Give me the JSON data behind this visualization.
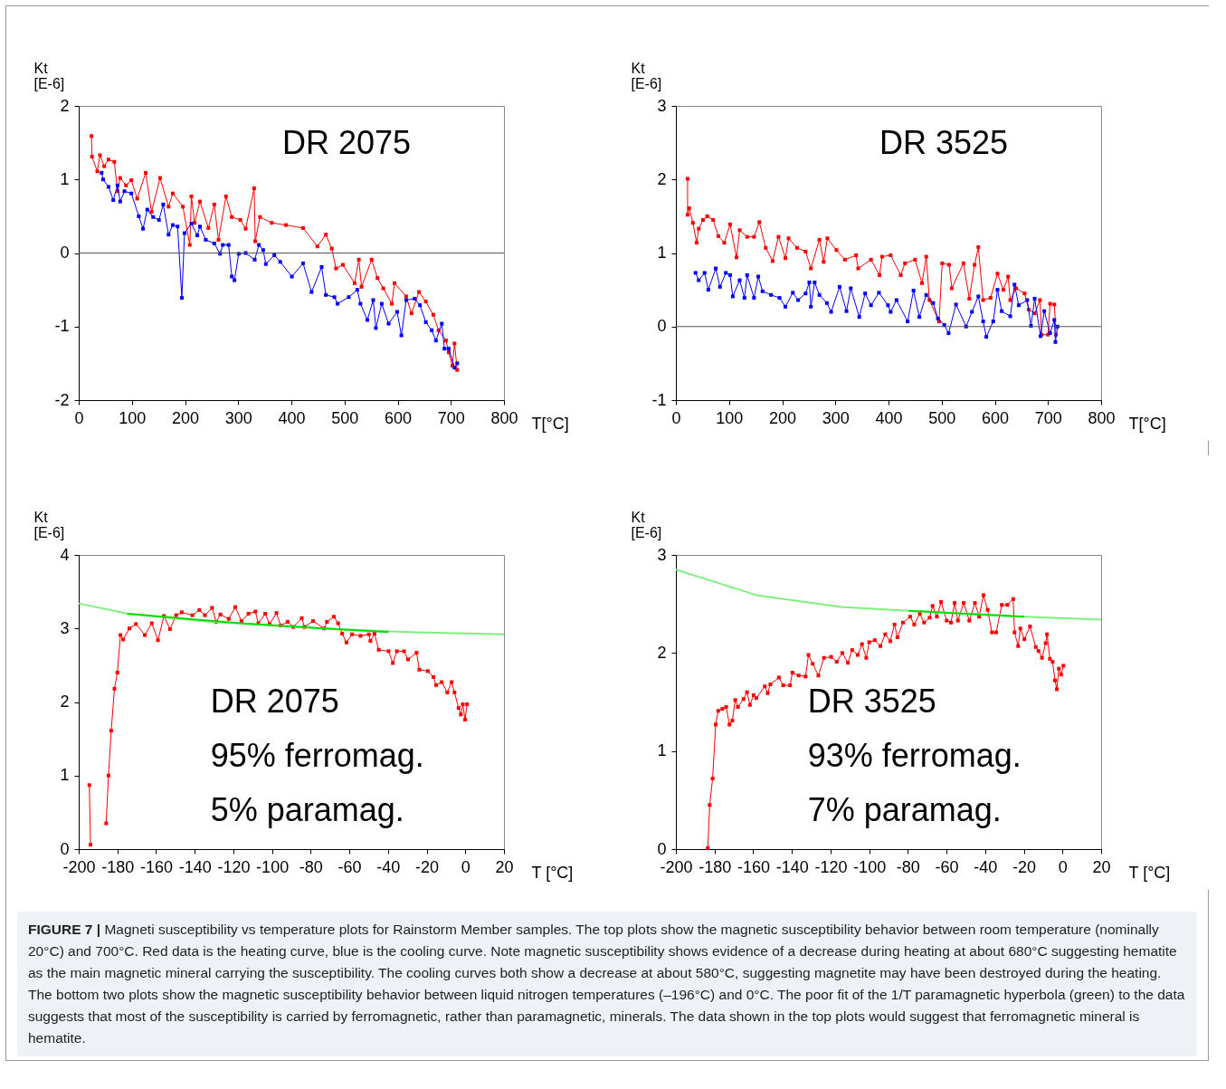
{
  "chart_data": [
    {
      "type": "line",
      "xlabel": "T[°C]",
      "ylabel": "Kt\n[E-6]",
      "annotations": [
        "DR 2075"
      ],
      "xlim": [
        0,
        800
      ],
      "xticks": [
        0,
        100,
        200,
        300,
        400,
        500,
        600,
        700,
        800
      ],
      "ylim": [
        -2,
        2
      ],
      "yticks": [
        -2,
        -1,
        0,
        1,
        2
      ],
      "marker": "square",
      "ref_lines": [
        {
          "axis": "y",
          "value": 0,
          "color": "#555555"
        }
      ],
      "series": [
        {
          "color": "#ff0000",
          "x": [
            24,
            25,
            35,
            40,
            48,
            56,
            67,
            73,
            78,
            89,
            99,
            110,
            126,
            137,
            153,
            169,
            177,
            196,
            209,
            212,
            218,
            228,
            244,
            255,
            263,
            277,
            288,
            304,
            314,
            330,
            332,
            341,
            363,
            390,
            422,
            449,
            465,
            476,
            484,
            497,
            519,
            527,
            532,
            551,
            562,
            573,
            589,
            594,
            616,
            626,
            640,
            653,
            667,
            677,
            691,
            696,
            703,
            707,
            712
          ],
          "values": [
            1.59,
            1.31,
            1.11,
            1.33,
            1.18,
            1.27,
            1.24,
            0.84,
            1.02,
            0.92,
            0.99,
            0.74,
            1.09,
            0.56,
            1.02,
            0.63,
            0.81,
            0.63,
            0.11,
            0.77,
            0.41,
            0.7,
            0.34,
            0.66,
            0.18,
            0.77,
            0.49,
            0.45,
            0.33,
            0.88,
            0.16,
            0.49,
            0.41,
            0.38,
            0.34,
            0.09,
            0.25,
            0.06,
            -0.21,
            -0.16,
            -0.41,
            -0.09,
            -0.46,
            -0.09,
            -0.34,
            -0.48,
            -0.69,
            -0.41,
            -0.59,
            -0.82,
            -0.53,
            -0.66,
            -0.84,
            -1.05,
            -1.19,
            -1.35,
            -1.53,
            -1.23,
            -1.59
          ]
        },
        {
          "color": "#0000ff",
          "x": [
            43,
            46,
            56,
            65,
            73,
            78,
            86,
            99,
            113,
            121,
            129,
            140,
            151,
            159,
            169,
            177,
            186,
            194,
            199,
            212,
            223,
            228,
            239,
            255,
            266,
            271,
            282,
            288,
            293,
            301,
            314,
            331,
            339,
            347,
            352,
            368,
            379,
            401,
            422,
            438,
            457,
            465,
            481,
            487,
            508,
            524,
            530,
            543,
            554,
            559,
            570,
            583,
            599,
            607,
            616,
            632,
            642,
            653,
            664,
            672,
            683,
            688,
            696,
            707,
            712
          ],
          "values": [
            1.09,
            1.0,
            0.9,
            0.72,
            0.92,
            0.7,
            0.84,
            0.81,
            0.5,
            0.33,
            0.59,
            0.49,
            0.45,
            0.66,
            0.25,
            0.38,
            0.36,
            -0.61,
            0.27,
            0.4,
            0.24,
            0.36,
            0.18,
            0.13,
            -0.01,
            0.11,
            0.11,
            -0.32,
            -0.37,
            -0.01,
            0.0,
            -0.09,
            0.11,
            0.04,
            -0.15,
            -0.03,
            -0.12,
            -0.32,
            -0.14,
            -0.53,
            -0.19,
            -0.57,
            -0.6,
            -0.69,
            -0.6,
            -0.5,
            -0.69,
            -0.91,
            -0.64,
            -1.02,
            -0.69,
            -0.96,
            -0.8,
            -1.12,
            -0.64,
            -0.62,
            -0.71,
            -0.94,
            -1.05,
            -1.19,
            -0.96,
            -1.3,
            -1.3,
            -1.56,
            -1.5
          ]
        }
      ]
    },
    {
      "type": "line",
      "xlabel": "T[°C]",
      "ylabel": "Kt\n[E-6]",
      "annotations": [
        "DR 3525"
      ],
      "xlim": [
        0,
        800
      ],
      "xticks": [
        0,
        100,
        200,
        300,
        400,
        500,
        600,
        700,
        800
      ],
      "ylim": [
        -1,
        3
      ],
      "yticks": [
        -1,
        0,
        1,
        2,
        3
      ],
      "marker": "square",
      "ref_lines": [
        {
          "axis": "y",
          "value": 0,
          "color": "#555555"
        }
      ],
      "series": [
        {
          "color": "#ff0000",
          "x": [
            22,
            22,
            25,
            32,
            39,
            43,
            51,
            59,
            70,
            80,
            91,
            102,
            114,
            120,
            134,
            147,
            157,
            169,
            182,
            193,
            206,
            212,
            228,
            244,
            254,
            270,
            278,
            285,
            302,
            318,
            339,
            343,
            367,
            383,
            388,
            404,
            423,
            431,
            450,
            463,
            471,
            477,
            495,
            501,
            514,
            519,
            541,
            552,
            562,
            569,
            578,
            592,
            605,
            616,
            625,
            629,
            640,
            656,
            664,
            675,
            685,
            688,
            700,
            704,
            712,
            715
          ],
          "values": [
            2.01,
            1.52,
            1.61,
            1.41,
            1.14,
            1.33,
            1.45,
            1.5,
            1.45,
            1.23,
            1.14,
            1.39,
            0.94,
            1.31,
            1.22,
            1.22,
            1.42,
            1.07,
            0.89,
            1.22,
            0.93,
            1.2,
            1.07,
            1.02,
            0.79,
            1.18,
            0.88,
            1.2,
            1.04,
            0.91,
            0.97,
            0.79,
            0.91,
            0.7,
            0.95,
            0.97,
            0.7,
            0.86,
            0.91,
            0.59,
            0.95,
            0.36,
            0.07,
            0.86,
            0.84,
            0.52,
            0.86,
            0.38,
            0.84,
            1.08,
            0.36,
            0.39,
            0.72,
            0.5,
            0.68,
            0.36,
            0.52,
            0.45,
            0.23,
            0.18,
            0.36,
            -0.11,
            -0.11,
            0.31,
            0.3,
            -0.11
          ]
        },
        {
          "color": "#0000ff",
          "x": [
            37,
            43,
            54,
            61,
            75,
            83,
            94,
            102,
            107,
            120,
            129,
            134,
            147,
            155,
            163,
            179,
            195,
            206,
            220,
            230,
            244,
            251,
            254,
            261,
            270,
            284,
            292,
            308,
            321,
            329,
            345,
            356,
            367,
            382,
            399,
            404,
            415,
            436,
            447,
            458,
            471,
            484,
            493,
            505,
            513,
            527,
            546,
            557,
            569,
            578,
            584,
            597,
            605,
            613,
            629,
            637,
            645,
            661,
            668,
            675,
            686,
            693,
            704,
            712,
            714,
            718
          ],
          "values": [
            0.73,
            0.63,
            0.73,
            0.5,
            0.79,
            0.54,
            0.73,
            0.7,
            0.41,
            0.63,
            0.39,
            0.7,
            0.39,
            0.68,
            0.48,
            0.43,
            0.39,
            0.27,
            0.46,
            0.36,
            0.45,
            0.6,
            0.27,
            0.6,
            0.43,
            0.32,
            0.2,
            0.54,
            0.21,
            0.52,
            0.13,
            0.45,
            0.29,
            0.46,
            0.29,
            0.2,
            0.36,
            0.07,
            0.49,
            0.13,
            0.43,
            0.32,
            0.11,
            0.02,
            -0.09,
            0.3,
            0.0,
            0.2,
            0.41,
            0.07,
            -0.14,
            0.07,
            0.5,
            0.21,
            0.14,
            0.57,
            0.29,
            0.36,
            0.01,
            0.38,
            -0.13,
            0.21,
            -0.09,
            0.09,
            -0.21,
            0.0
          ]
        }
      ]
    },
    {
      "type": "line",
      "xlabel": "T [°C]",
      "ylabel": "Kt\n[E-6]",
      "annotations": [
        "DR 2075",
        "95% ferromag.",
        "5% paramag."
      ],
      "xlim": [
        -200,
        20
      ],
      "xticks": [
        -200,
        -180,
        -160,
        -140,
        -120,
        -100,
        -80,
        -60,
        -40,
        -20,
        0,
        20
      ],
      "ylim": [
        0,
        4
      ],
      "yticks": [
        0,
        1,
        2,
        3,
        4
      ],
      "marker": "square",
      "series": [
        {
          "color": "#ff0000",
          "x": [
            -194.5,
            -193.9,
            -190,
            -185.8,
            -184.6,
            -183.2,
            -181.5,
            -180.0,
            -178.4,
            -177.0,
            -173.8,
            -170.4,
            -165.8,
            -162.2,
            -159.0,
            -155.9,
            -152.8,
            -149.6,
            -146.7,
            -141.2,
            -137.6,
            -134.7,
            -131.0,
            -128.9,
            -126.7,
            -122.4,
            -119.0,
            -115.8,
            -112.2,
            -108.6,
            -107.1,
            -103.5,
            -101.3,
            -97.7,
            -95.5,
            -91.9,
            -89.0,
            -84.6,
            -83.2,
            -78.8,
            -73.0,
            -71.6,
            -68.0,
            -65.8,
            -63.7,
            -61.5,
            -58.6,
            -54.2,
            -49.9,
            -49.1,
            -47.0,
            -44.8,
            -39.7,
            -37.5,
            -35.4,
            -31.7,
            -29.6,
            -25.2,
            -23.8,
            -19.4,
            -16.5,
            -15.1,
            -12.2,
            -9.3,
            -7.1,
            -5.6,
            -3.5,
            -2.3,
            -1.3,
            -0.1,
            0.9
          ],
          "values": [
            0.87,
            0.06,
            null,
            0.35,
            1.0,
            1.61,
            2.18,
            2.4,
            2.91,
            2.85,
            3.0,
            3.06,
            2.91,
            3.07,
            2.84,
            3.17,
            2.99,
            3.18,
            3.22,
            3.18,
            3.25,
            3.18,
            3.28,
            3.09,
            3.19,
            3.13,
            3.29,
            3.1,
            3.2,
            3.23,
            3.07,
            3.2,
            3.06,
            3.21,
            3.04,
            3.09,
            3.02,
            3.14,
            3.02,
            3.1,
            3.0,
            3.09,
            3.16,
            3.07,
            2.93,
            2.81,
            2.92,
            2.9,
            2.92,
            2.83,
            2.93,
            2.71,
            2.69,
            2.53,
            2.69,
            2.69,
            2.58,
            2.67,
            2.44,
            2.42,
            2.34,
            2.23,
            2.27,
            2.13,
            2.27,
            2.13,
            1.92,
            1.83,
            1.97,
            1.76,
            1.97
          ]
        },
        {
          "color": "#80ee80",
          "marker": "none",
          "x": [
            -200,
            -174.5,
            -131,
            -73,
            -29.6,
            20
          ],
          "values": [
            3.34,
            3.2,
            3.09,
            3.0,
            2.95,
            2.92
          ]
        },
        {
          "color": "#00dd00",
          "marker": "none",
          "x": [
            -174.9,
            -116.5,
            -73,
            -39.7
          ],
          "values": [
            3.2,
            3.07,
            3.0,
            2.95
          ]
        }
      ]
    },
    {
      "type": "line",
      "xlabel": "T [°C]",
      "ylabel": "Kt\n[E-6]",
      "annotations": [
        "DR 3525",
        "93% ferromag.",
        "7% paramag."
      ],
      "xlim": [
        -200,
        20
      ],
      "xticks": [
        -200,
        -180,
        -160,
        -140,
        -120,
        -100,
        -80,
        -60,
        -40,
        -20,
        0,
        20
      ],
      "ylim": [
        0,
        3
      ],
      "yticks": [
        0,
        1,
        2,
        3
      ],
      "marker": "square",
      "series": [
        {
          "color": "#ff0000",
          "x": [
            -183.5,
            -182.5,
            -181.0,
            -179.4,
            -178.1,
            -175.9,
            -174.0,
            -172.3,
            -170.8,
            -169.3,
            -167.9,
            -165.0,
            -163.2,
            -161.7,
            -159.8,
            -158.4,
            -154.0,
            -152.5,
            -151.1,
            -146.7,
            -144.5,
            -140.9,
            -139.7,
            -136.5,
            -132.9,
            -131.4,
            -129.2,
            -126.3,
            -123.4,
            -119.7,
            -116.8,
            -113.9,
            -111.0,
            -108.8,
            -105.9,
            -103.7,
            -101.5,
            -100.0,
            -97.1,
            -94.2,
            -91.7,
            -89.1,
            -86.9,
            -85.4,
            -82.5,
            -78.8,
            -76.7,
            -73.8,
            -71.6,
            -68.7,
            -67.2,
            -65.0,
            -62.8,
            -59.9,
            -57.7,
            -55.8,
            -54.1,
            -51.1,
            -48.2,
            -45.3,
            -43.1,
            -40.9,
            -38.7,
            -36.5,
            -34.3,
            -31.4,
            -28.5,
            -25.5,
            -24.8,
            -22.9,
            -21.8,
            -19.7,
            -16.8,
            -13.8,
            -12.4,
            -10.6,
            -8.7,
            -8.0,
            -6.5,
            -5.1,
            -3.9,
            -2.9,
            -1.9,
            -0.7,
            0.5
          ],
          "values": [
            0.01,
            0.45,
            0.72,
            1.27,
            1.41,
            1.43,
            1.45,
            1.27,
            1.31,
            1.52,
            1.45,
            1.53,
            1.6,
            1.47,
            1.57,
            1.54,
            1.66,
            1.59,
            1.68,
            1.75,
            1.67,
            1.67,
            1.8,
            1.77,
            1.76,
            1.98,
            1.89,
            1.77,
            1.95,
            1.96,
            1.91,
            2.0,
            1.9,
            2.03,
            1.98,
            2.09,
            1.95,
            2.11,
            2.13,
            2.07,
            2.19,
            2.12,
            2.29,
            2.16,
            2.31,
            2.37,
            2.29,
            2.4,
            2.31,
            2.36,
            2.48,
            2.37,
            2.52,
            2.33,
            2.31,
            2.51,
            2.33,
            2.51,
            2.33,
            2.51,
            2.37,
            2.59,
            2.44,
            2.21,
            2.21,
            2.49,
            2.49,
            2.55,
            2.21,
            2.07,
            2.25,
            2.14,
            2.27,
            2.06,
            2.02,
            1.95,
            2.1,
            2.19,
            1.94,
            1.91,
            1.72,
            1.63,
            1.84,
            1.78,
            1.87
          ]
        },
        {
          "color": "#80ee80",
          "marker": "none",
          "x": [
            -200,
            -158.4,
            -114.6,
            -79.6,
            -19.7,
            20
          ],
          "values": [
            2.85,
            2.59,
            2.47,
            2.43,
            2.37,
            2.34
          ]
        },
        {
          "color": "#00dd00",
          "marker": "none",
          "x": [
            -79.6,
            -50.4,
            -19.7
          ],
          "values": [
            2.43,
            2.4,
            2.37
          ]
        }
      ]
    },
    {
      "type": "other",
      "annotations": [
        "FIGURE 7 |",
        "Magneti susceptibility vs temperature plots for Rainstorm Member samples. The top plots show the magnetic susceptibility behavior between room temperature (nominally 20°C) and 700°C. Red data is the heating curve, blue is the cooling curve. Note magnetic susceptibility shows evidence of a decrease during heating at about 680°C suggesting hematite as the main magnetic mineral carrying the susceptibility. The cooling curves both show a decrease at about 580°C, suggesting magnetite may have been destroyed during the heating. The bottom two plots show the magnetic susceptibility behavior between liquid nitrogen temperatures (–196°C) and 0°C. The poor fit of the 1/T paramagnetic hyperbola (green) to the data suggests that most of the susceptibility is carried by ferromagnetic, rather than paramagnetic, minerals. The data shown in the top plots would suggest that ferromagnetic mineral is hematite."
      ]
    }
  ]
}
